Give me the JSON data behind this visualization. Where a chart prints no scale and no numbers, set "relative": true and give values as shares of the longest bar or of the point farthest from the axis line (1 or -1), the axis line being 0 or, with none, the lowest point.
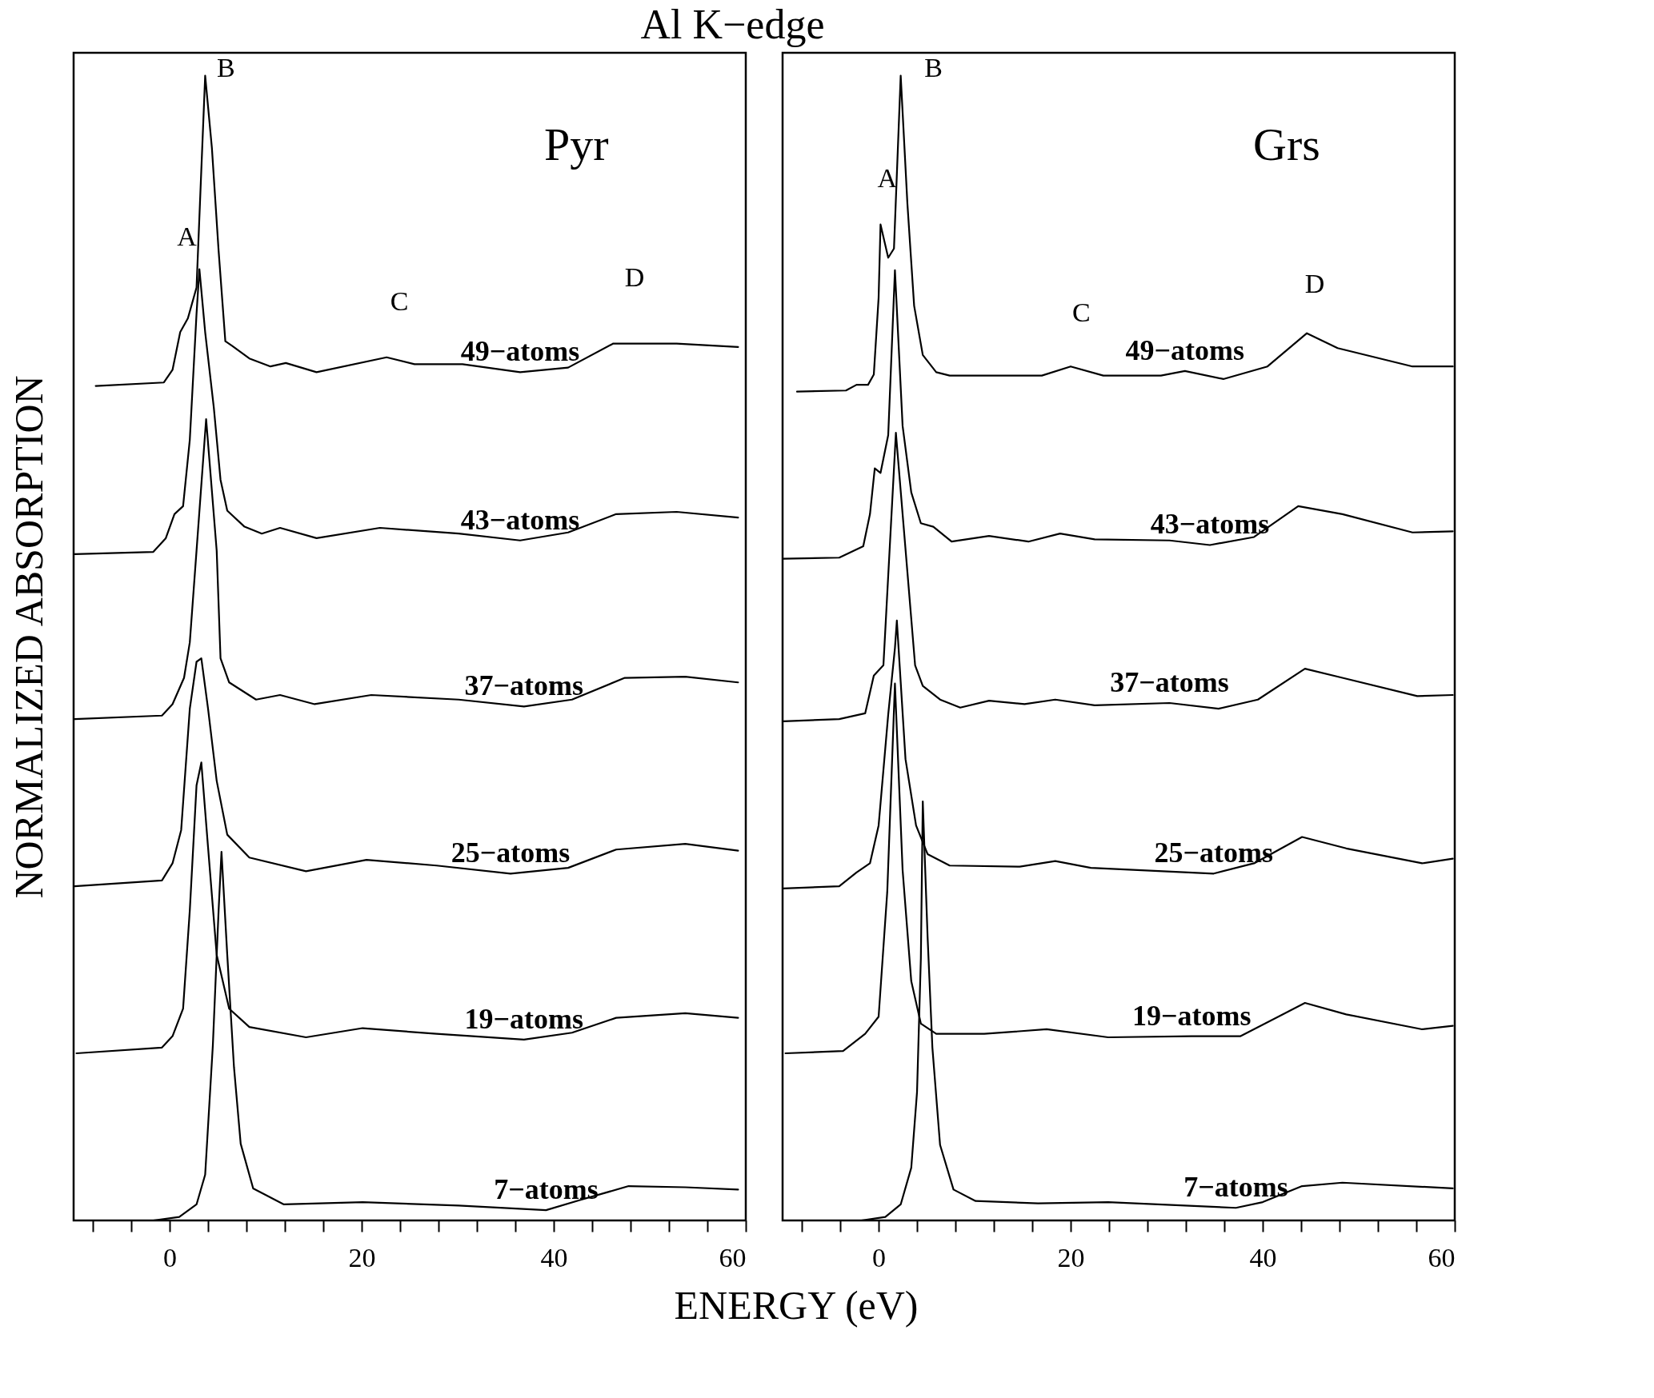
{
  "chart_data": [
    {
      "type": "line",
      "title": "Al K−edge",
      "xlabel": "ENERGY (eV)",
      "ylabel": "NORMALIZED ABSORPTION",
      "relative": true,
      "legend": false,
      "tick_labels": "x",
      "xlim": [
        -10,
        60
      ],
      "xticks": [
        {
          "value": -8,
          "label": null
        },
        {
          "value": -4,
          "label": null
        },
        0,
        {
          "value": 4,
          "label": null
        },
        {
          "value": 8,
          "label": null
        },
        {
          "value": 12,
          "label": null
        },
        {
          "value": 16,
          "label": null
        },
        20,
        {
          "value": 24,
          "label": null
        },
        {
          "value": 28,
          "label": null
        },
        {
          "value": 32,
          "label": null
        },
        {
          "value": 36,
          "label": null
        },
        40,
        {
          "value": 44,
          "label": null
        },
        {
          "value": 48,
          "label": null
        },
        {
          "value": 52,
          "label": null
        },
        {
          "value": 56,
          "label": null
        },
        60
      ],
      "annotations": [
        "Pyr",
        "A",
        "B",
        "C",
        "D"
      ],
      "series": [
        {
          "name": "49−atoms",
          "color": "#000000",
          "x": [
            -7.7,
            -0.6,
            0.3,
            1.1,
            1.9,
            2.8,
            3.7,
            4.4,
            5.1,
            5.8,
            6.5,
            8.3,
            10.5,
            12.1,
            15.3,
            22.6,
            25.5,
            30.5,
            36.5,
            41.5,
            46.2,
            52.8,
            59.2
          ],
          "values": [
            0.729,
            0.732,
            0.743,
            0.776,
            0.788,
            0.815,
            1.0,
            0.937,
            0.847,
            0.768,
            0.764,
            0.753,
            0.746,
            0.749,
            0.741,
            0.754,
            0.748,
            0.748,
            0.741,
            0.745,
            0.766,
            0.766,
            0.763
          ]
        },
        {
          "name": "43−atoms",
          "color": "#000000",
          "x": [
            -9.9,
            -1.7,
            -0.4,
            0.5,
            1.4,
            2.1,
            2.8,
            3.1,
            3.7,
            4.6,
            5.3,
            6.0,
            7.8,
            9.6,
            11.5,
            15.3,
            21.9,
            30.1,
            36.5,
            41.5,
            46.5,
            52.8,
            59.2
          ],
          "values": [
            0.582,
            0.584,
            0.596,
            0.617,
            0.624,
            0.682,
            0.792,
            0.831,
            0.776,
            0.71,
            0.647,
            0.62,
            0.606,
            0.6,
            0.605,
            0.596,
            0.605,
            0.6,
            0.594,
            0.601,
            0.617,
            0.619,
            0.614
          ]
        },
        {
          "name": "37−atoms",
          "color": "#000000",
          "x": [
            -9.9,
            -0.8,
            0.3,
            1.5,
            2.1,
            2.8,
            3.8,
            4.9,
            5.3,
            6.2,
            9.0,
            11.5,
            15.1,
            21.0,
            30.1,
            36.9,
            41.9,
            47.4,
            53.7,
            59.2
          ],
          "values": [
            0.438,
            0.441,
            0.451,
            0.474,
            0.505,
            0.585,
            0.7,
            0.585,
            0.491,
            0.47,
            0.455,
            0.459,
            0.451,
            0.459,
            0.455,
            0.449,
            0.455,
            0.474,
            0.475,
            0.47
          ]
        },
        {
          "name": "25−atoms",
          "color": "#000000",
          "x": [
            -9.9,
            -0.8,
            0.3,
            1.2,
            2.1,
            2.8,
            3.3,
            4.0,
            4.9,
            6.0,
            8.3,
            14.2,
            20.5,
            27.8,
            35.5,
            41.5,
            46.5,
            53.7,
            59.2
          ],
          "values": [
            0.292,
            0.297,
            0.312,
            0.341,
            0.447,
            0.488,
            0.491,
            0.447,
            0.384,
            0.337,
            0.317,
            0.305,
            0.315,
            0.31,
            0.303,
            0.308,
            0.324,
            0.329,
            0.323
          ]
        },
        {
          "name": "19−atoms",
          "color": "#000000",
          "x": [
            -9.7,
            -0.8,
            0.3,
            1.4,
            2.1,
            2.8,
            3.3,
            4.0,
            4.9,
            6.2,
            8.3,
            14.2,
            20.1,
            27.8,
            36.9,
            41.9,
            46.5,
            53.7,
            59.2
          ],
          "values": [
            0.146,
            0.151,
            0.161,
            0.185,
            0.271,
            0.38,
            0.4,
            0.326,
            0.232,
            0.185,
            0.169,
            0.16,
            0.168,
            0.163,
            0.158,
            0.164,
            0.177,
            0.181,
            0.177
          ]
        },
        {
          "name": "7−atoms",
          "color": "#000000",
          "x": [
            -1.7,
            1.0,
            2.8,
            3.7,
            4.5,
            5.1,
            5.4,
            6.0,
            6.7,
            7.4,
            8.7,
            11.9,
            20.1,
            30.1,
            39.2,
            42.8,
            47.8,
            53.7,
            59.2
          ],
          "values": [
            0,
            0.003,
            0.014,
            0.04,
            0.153,
            0.271,
            0.322,
            0.232,
            0.134,
            0.067,
            0.028,
            0.014,
            0.016,
            0.013,
            0.009,
            0.018,
            0.03,
            0.029,
            0.027
          ]
        }
      ]
    },
    {
      "type": "line",
      "relative": true,
      "legend": false,
      "tick_labels": "x",
      "xlim": [
        -10,
        60
      ],
      "xticks": [
        {
          "value": -8,
          "label": null
        },
        {
          "value": -4,
          "label": null
        },
        0,
        {
          "value": 4,
          "label": null
        },
        {
          "value": 8,
          "label": null
        },
        {
          "value": 12,
          "label": null
        },
        {
          "value": 16,
          "label": null
        },
        20,
        {
          "value": 24,
          "label": null
        },
        {
          "value": 28,
          "label": null
        },
        {
          "value": 32,
          "label": null
        },
        {
          "value": 36,
          "label": null
        },
        40,
        {
          "value": 44,
          "label": null
        },
        {
          "value": 48,
          "label": null
        },
        {
          "value": 52,
          "label": null
        },
        {
          "value": 56,
          "label": null
        },
        60
      ],
      "annotations": [
        "Grs",
        "A",
        "B",
        "C",
        "D"
      ],
      "series": [
        {
          "name": "49−atoms",
          "color": "#000000",
          "x": [
            -8.5,
            -3.4,
            -2.3,
            -1.1,
            -0.5,
            0,
            0.2,
            1.0,
            1.6,
            2.3,
            3.0,
            3.7,
            4.6,
            6.0,
            7.4,
            11.5,
            17.0,
            20.0,
            23.4,
            29.4,
            31.9,
            35.9,
            40.5,
            44.6,
            47.8,
            55.6,
            59.8
          ],
          "values": [
            0.724,
            0.725,
            0.73,
            0.73,
            0.739,
            0.806,
            0.87,
            0.841,
            0.849,
            1.0,
            0.888,
            0.799,
            0.756,
            0.741,
            0.738,
            0.738,
            0.738,
            0.746,
            0.738,
            0.738,
            0.742,
            0.735,
            0.746,
            0.775,
            0.762,
            0.746,
            0.746
          ]
        },
        {
          "name": "43−atoms",
          "color": "#000000",
          "x": [
            -10,
            -4.1,
            -1.6,
            -0.9,
            -0.4,
            0.2,
            1.0,
            1.7,
            2.5,
            3.4,
            4.4,
            5.7,
            7.6,
            11.5,
            15.6,
            18.9,
            22.5,
            30.3,
            34.5,
            39.1,
            43.7,
            48.3,
            55.6,
            59.8
          ],
          "values": [
            0.578,
            0.579,
            0.589,
            0.617,
            0.657,
            0.653,
            0.686,
            0.83,
            0.694,
            0.636,
            0.609,
            0.606,
            0.593,
            0.598,
            0.593,
            0.6,
            0.595,
            0.594,
            0.59,
            0.597,
            0.624,
            0.617,
            0.601,
            0.602
          ]
        },
        {
          "name": "37−atoms",
          "color": "#000000",
          "x": [
            -9.9,
            -4.1,
            -1.4,
            -0.5,
            0.5,
            1.8,
            3.8,
            4.6,
            6.4,
            8.5,
            11.5,
            15.2,
            18.4,
            22.5,
            30.3,
            35.4,
            39.5,
            44.4,
            48.3,
            56.1,
            59.8
          ],
          "values": [
            0.436,
            0.438,
            0.443,
            0.476,
            0.485,
            0.688,
            0.485,
            0.467,
            0.455,
            0.448,
            0.454,
            0.451,
            0.455,
            0.45,
            0.452,
            0.447,
            0.455,
            0.482,
            0.474,
            0.458,
            0.459
          ]
        },
        {
          "name": "25−atoms",
          "color": "#000000",
          "x": [
            -9.9,
            -4.1,
            -2.3,
            -0.9,
            0,
            1.0,
            1.7,
            1.9,
            2.8,
            3.9,
            5.1,
            7.4,
            14.7,
            18.4,
            22.1,
            34.9,
            39.1,
            44.1,
            48.7,
            56.6,
            59.8
          ],
          "values": [
            0.29,
            0.292,
            0.304,
            0.312,
            0.345,
            0.442,
            0.5,
            0.524,
            0.403,
            0.345,
            0.32,
            0.31,
            0.309,
            0.314,
            0.308,
            0.303,
            0.312,
            0.335,
            0.325,
            0.312,
            0.316
          ]
        },
        {
          "name": "19−atoms",
          "color": "#000000",
          "x": [
            -9.7,
            -3.7,
            -1.4,
            0,
            0.9,
            1.7,
            2.5,
            3.4,
            4.4,
            6.0,
            11.0,
            17.5,
            23.9,
            32.6,
            37.7,
            44.4,
            48.7,
            56.6,
            59.8
          ],
          "values": [
            0.146,
            0.148,
            0.163,
            0.178,
            0.287,
            0.469,
            0.306,
            0.209,
            0.172,
            0.163,
            0.163,
            0.167,
            0.16,
            0.161,
            0.161,
            0.19,
            0.18,
            0.167,
            0.17
          ]
        },
        {
          "name": "7−atoms",
          "color": "#000000",
          "x": [
            -1.8,
            0.7,
            2.3,
            3.4,
            4.0,
            4.4,
            4.6,
            5.1,
            5.6,
            6.4,
            7.8,
            10.1,
            16.6,
            23.9,
            37.2,
            40.0,
            44.1,
            48.3,
            59.8
          ],
          "values": [
            0,
            0.003,
            0.014,
            0.046,
            0.112,
            0.229,
            0.366,
            0.248,
            0.151,
            0.066,
            0.027,
            0.017,
            0.015,
            0.016,
            0.011,
            0.016,
            0.03,
            0.033,
            0.028
          ]
        }
      ]
    }
  ]
}
